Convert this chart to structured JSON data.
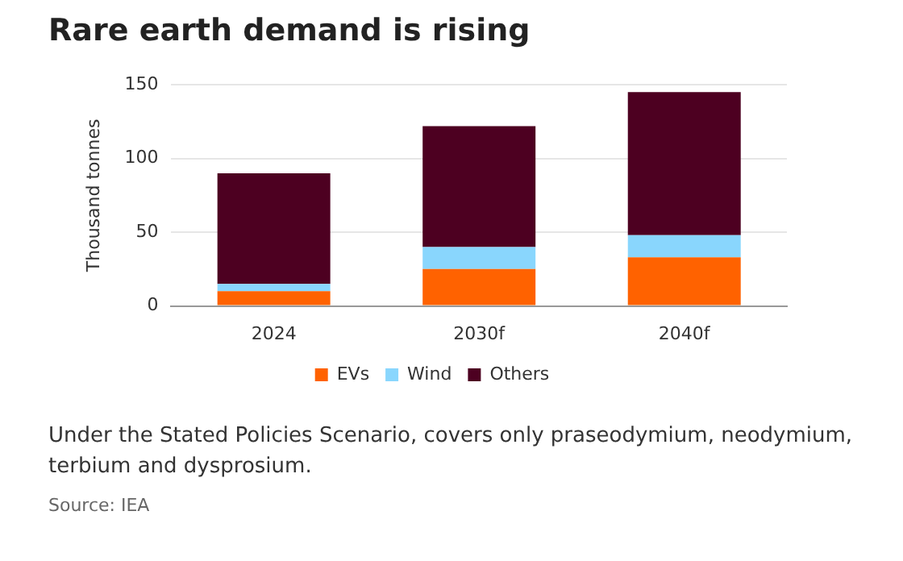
{
  "chart_data": {
    "type": "bar",
    "title": "Rare earth demand is rising",
    "ylabel": "Thousand tonnes",
    "categories": [
      "2024",
      "2030f",
      "2040f"
    ],
    "stacked": true,
    "series": [
      {
        "name": "EVs",
        "color": "#ff6200",
        "values": [
          10,
          25,
          33
        ]
      },
      {
        "name": "Wind",
        "color": "#89d6fd",
        "values": [
          5,
          15,
          15
        ]
      },
      {
        "name": "Others",
        "color": "#4d0021",
        "values": [
          75,
          82,
          97
        ]
      }
    ],
    "ylim": [
      0,
      150
    ],
    "yticks": [
      0,
      50,
      100,
      150
    ],
    "grid": "y",
    "legend": "bottom",
    "annotations": [
      "Under the Stated Policies Scenario, covers only praseodymium, neodymium, terbium and dysprosium.",
      "Source: IEA"
    ]
  }
}
